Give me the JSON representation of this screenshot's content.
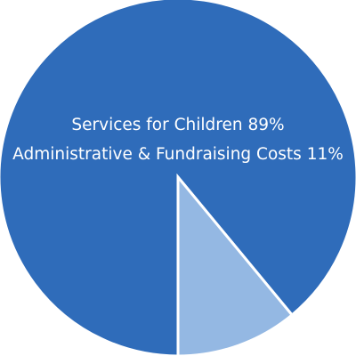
{
  "chart_data": {
    "type": "pie",
    "title": "",
    "slices": [
      {
        "label": "Services for Children",
        "value": 89,
        "color": "#2f6cba"
      },
      {
        "label": "Administrative & Fundraising Costs",
        "value": 11,
        "color": "#94b8e3"
      }
    ],
    "labels": {
      "line1": "Services for Children 89%",
      "line2": "Administrative & Fundraising Costs 11%"
    },
    "edge_color": "#ffffff"
  }
}
